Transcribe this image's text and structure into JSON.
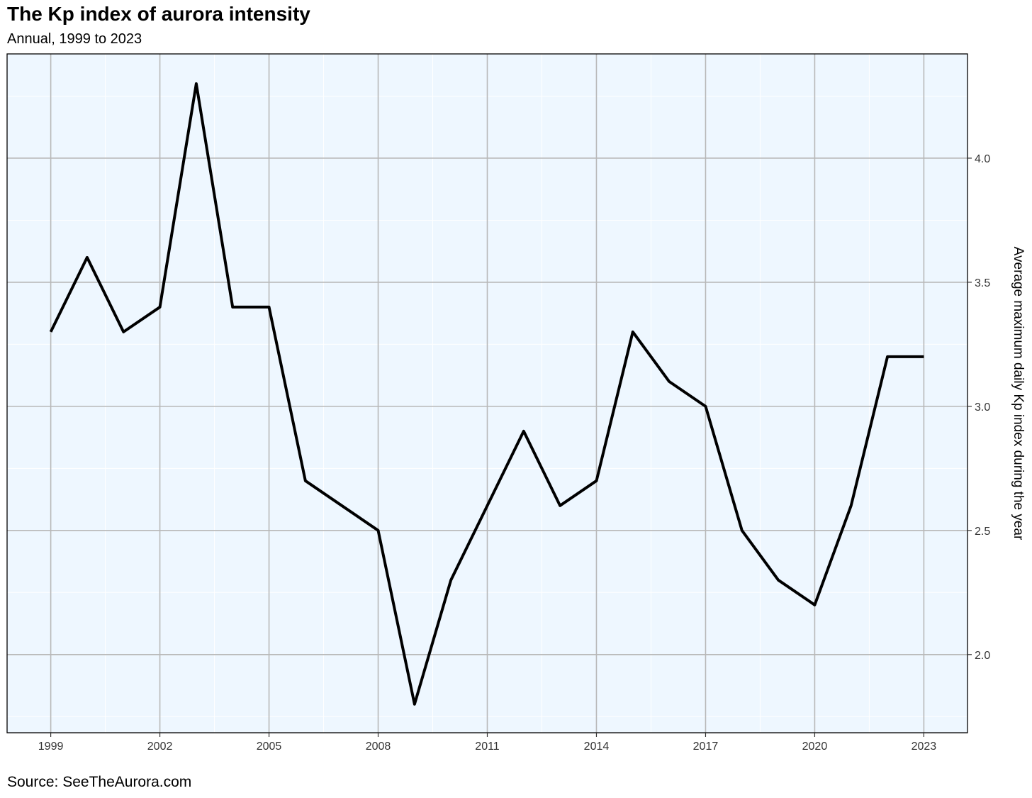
{
  "title": "The Kp index of aurora intensity",
  "subtitle": "Annual, 1999 to 2023",
  "caption": "Source: SeeTheAurora.com",
  "chart_data": {
    "type": "line",
    "title": "The Kp index of aurora intensity",
    "subtitle": "Annual, 1999 to 2023",
    "xlabel": "",
    "ylabel": "Average maximum daily Kp index during the year",
    "x": [
      1999,
      2000,
      2001,
      2002,
      2003,
      2004,
      2005,
      2006,
      2007,
      2008,
      2009,
      2010,
      2011,
      2012,
      2013,
      2014,
      2015,
      2016,
      2017,
      2018,
      2019,
      2020,
      2021,
      2022,
      2023
    ],
    "series": [
      {
        "values": [
          3.3,
          3.6,
          3.3,
          3.4,
          4.3,
          3.4,
          3.4,
          2.7,
          2.6,
          2.5,
          1.8,
          2.3,
          2.6,
          2.9,
          2.6,
          2.7,
          3.3,
          3.1,
          3.0,
          2.5,
          2.3,
          2.2,
          2.6,
          3.2,
          3.2
        ]
      }
    ],
    "xticks": [
      1999,
      2002,
      2005,
      2008,
      2011,
      2014,
      2017,
      2020,
      2023
    ],
    "yticks": [
      2.0,
      2.5,
      3.0,
      3.5,
      4.0
    ],
    "xtick_labels": [
      "1999",
      "2002",
      "2005",
      "2008",
      "2011",
      "2014",
      "2017",
      "2020",
      "2023"
    ],
    "ytick_labels": [
      "2.0",
      "2.5",
      "3.0",
      "3.5",
      "4.0"
    ],
    "xlim": [
      1997.8,
      2024.2
    ],
    "ylim": [
      1.685,
      4.42
    ],
    "y_axis_position": "right",
    "grid": true,
    "legend": "none",
    "colors": {
      "panel_background": "#eef7ff",
      "major_grid": "#b8b8b8",
      "minor_grid": "#ffffff",
      "line": "#000000",
      "border": "#000000"
    }
  }
}
